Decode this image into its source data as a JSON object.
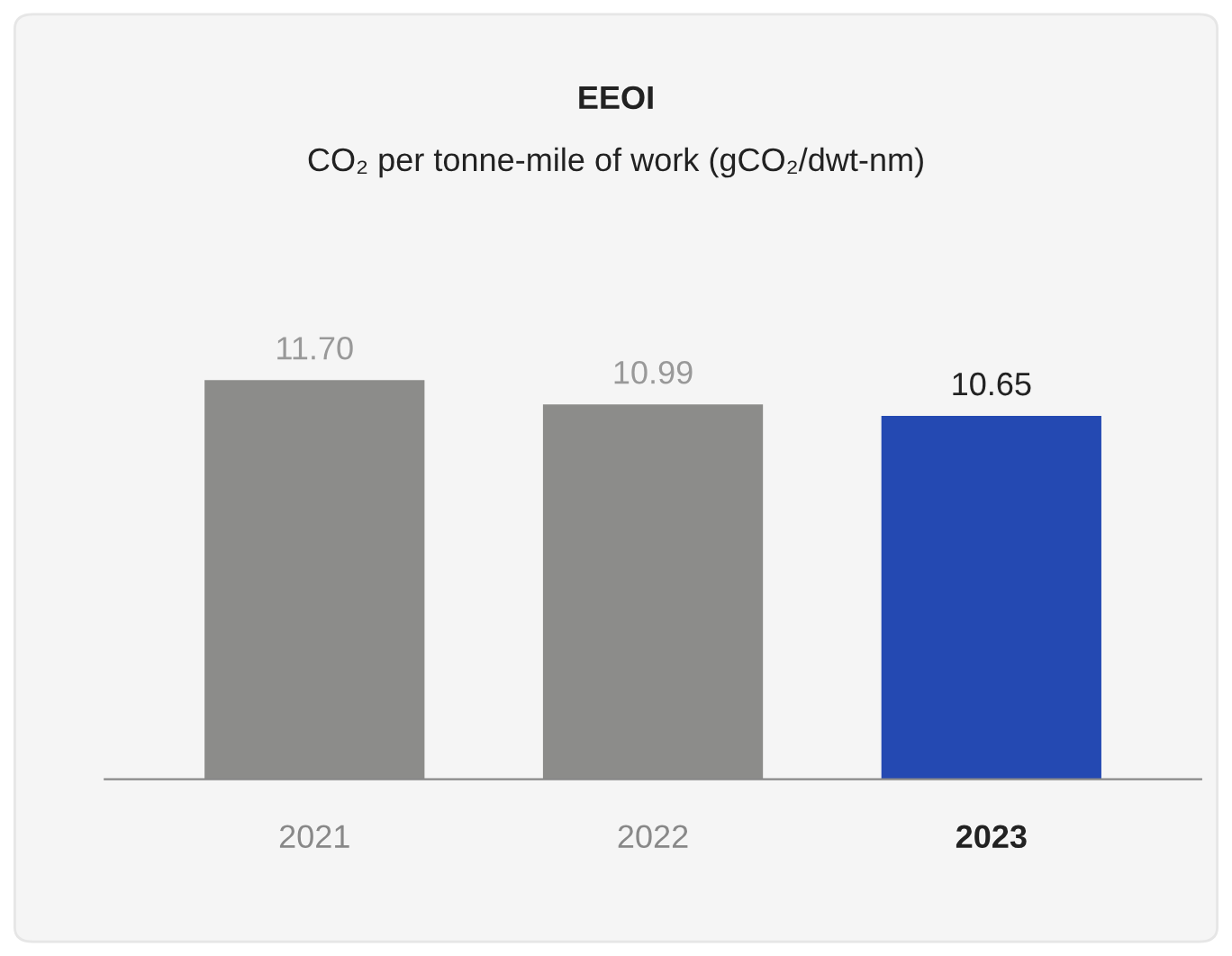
{
  "chart_data": {
    "type": "bar",
    "title": "EEOI",
    "subtitle": "CO₂ per tonne-mile of work (gCO₂/dwt-nm)",
    "categories": [
      "2021",
      "2022",
      "2023"
    ],
    "values": [
      11.7,
      10.99,
      10.65
    ],
    "value_labels": [
      "11.70",
      "10.99",
      "10.65"
    ],
    "colors": [
      "#8c8c8a",
      "#8c8c8a",
      "#2449b2"
    ],
    "grid": false,
    "legend": false
  }
}
